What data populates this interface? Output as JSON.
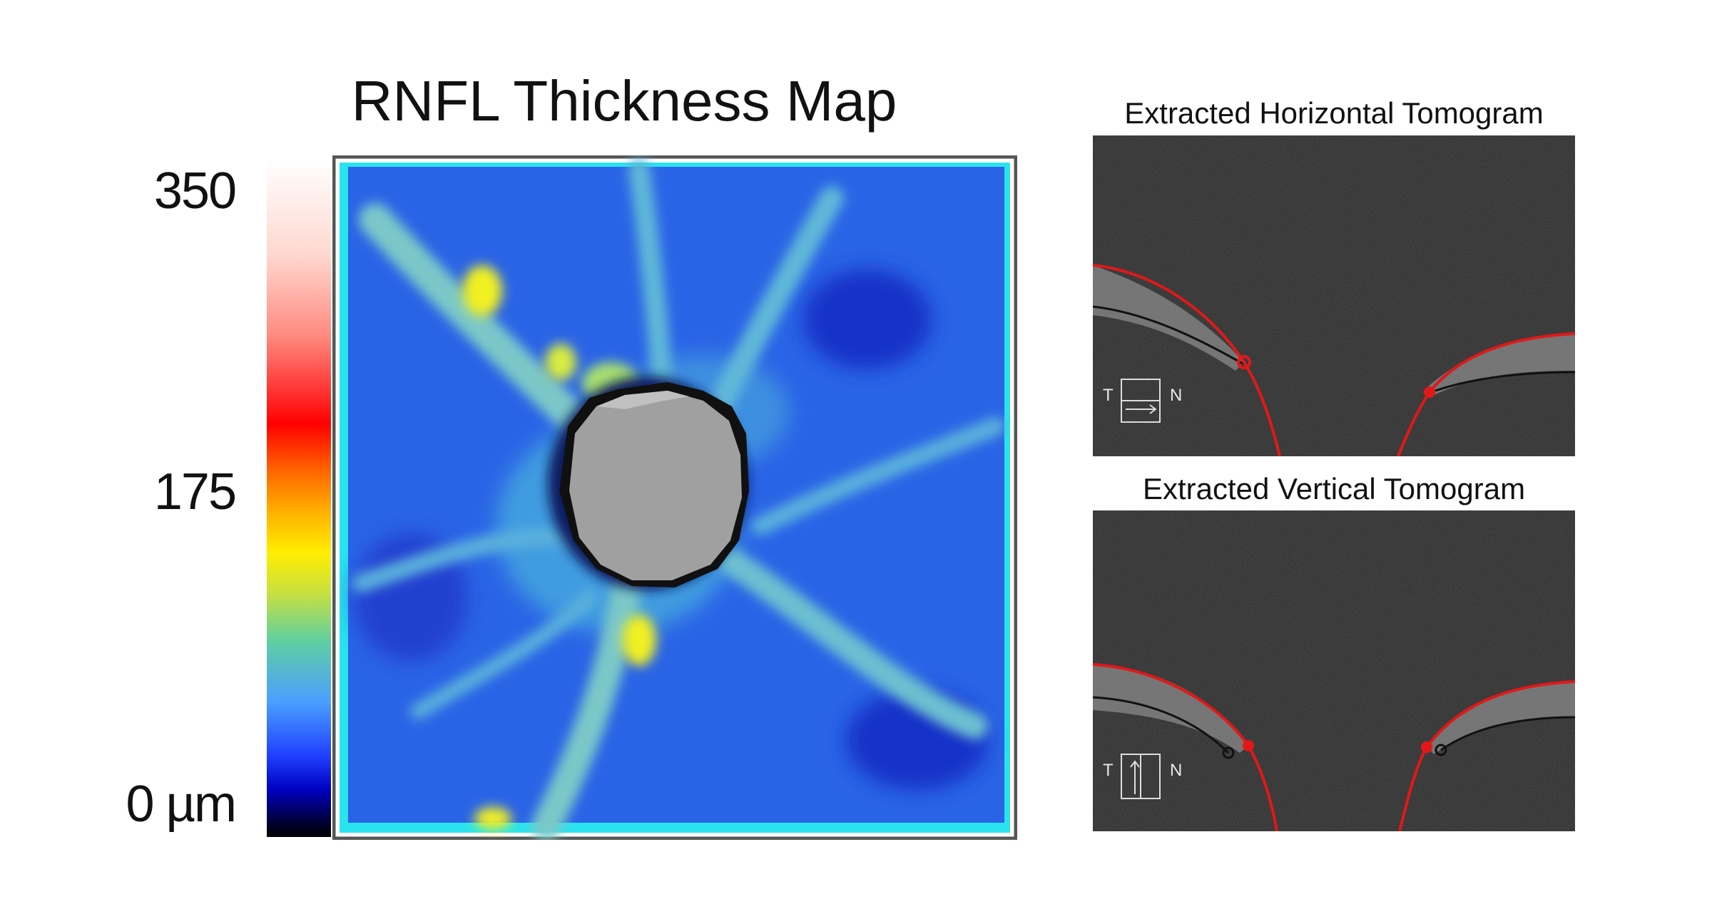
{
  "map": {
    "title": "RNFL Thickness Map",
    "scale_ticks": {
      "top": "350",
      "middle": "175",
      "bottom": "0 µm"
    },
    "frame_color": "#29e3ef",
    "border_color": "#555555",
    "disc_color": "#a0a0a0",
    "background_color": "#2a64e6",
    "vessel_color": "#7cc8c8",
    "hotspot_color": "#f0f020"
  },
  "horizontal_tomogram": {
    "title": "Extracted Horizontal Tomogram",
    "orientation": {
      "left_label": "T",
      "right_label": "N",
      "arrow_direction": "right"
    }
  },
  "vertical_tomogram": {
    "title": "Extracted Vertical Tomogram",
    "orientation": {
      "left_label": "T",
      "right_label": "N",
      "arrow_direction": "up"
    }
  },
  "colors": {
    "boundary_line": "#e21818",
    "inner_line": "#111111",
    "tomogram_background": "#222222"
  }
}
